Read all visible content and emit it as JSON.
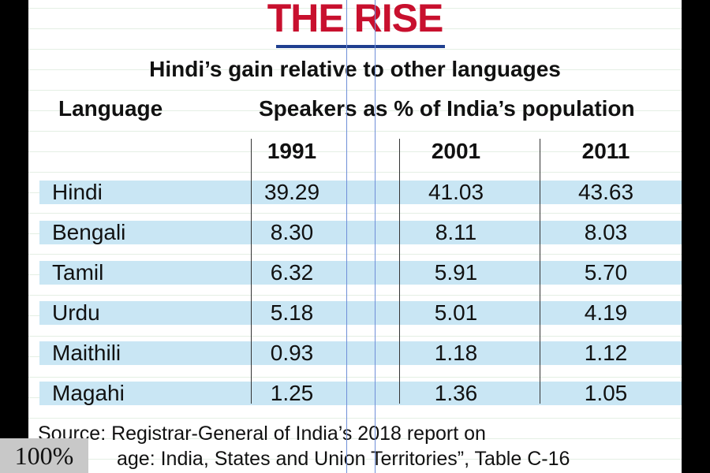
{
  "title": "THE RISE",
  "subtitle": "Hindi’s gain relative to other languages",
  "chart_data": {
    "type": "table",
    "title": "THE RISE",
    "subtitle": "Hindi’s gain relative to other languages",
    "row_header": "Language",
    "group_header": "Speakers as % of India’s population",
    "columns": [
      "1991",
      "2001",
      "2011"
    ],
    "rows": [
      {
        "language": "Hindi",
        "values": [
          "39.29",
          "41.03",
          "43.63"
        ]
      },
      {
        "language": "Bengali",
        "values": [
          "8.30",
          "8.11",
          "8.03"
        ]
      },
      {
        "language": "Tamil",
        "values": [
          "6.32",
          "5.91",
          "5.70"
        ]
      },
      {
        "language": "Urdu",
        "values": [
          "5.18",
          "5.01",
          "4.19"
        ]
      },
      {
        "language": "Maithili",
        "values": [
          "0.93",
          "1.18",
          "1.12"
        ]
      },
      {
        "language": "Magahi",
        "values": [
          "1.25",
          "1.36",
          "1.05"
        ]
      }
    ],
    "band_color": "#c9e6f4",
    "title_color": "#c8102e"
  },
  "source": {
    "line1": "Source: Registrar-General of India’s 2018 report on",
    "line2": "age: India, States and Union Territories”, Table C-16"
  },
  "zoom_label": "100%"
}
